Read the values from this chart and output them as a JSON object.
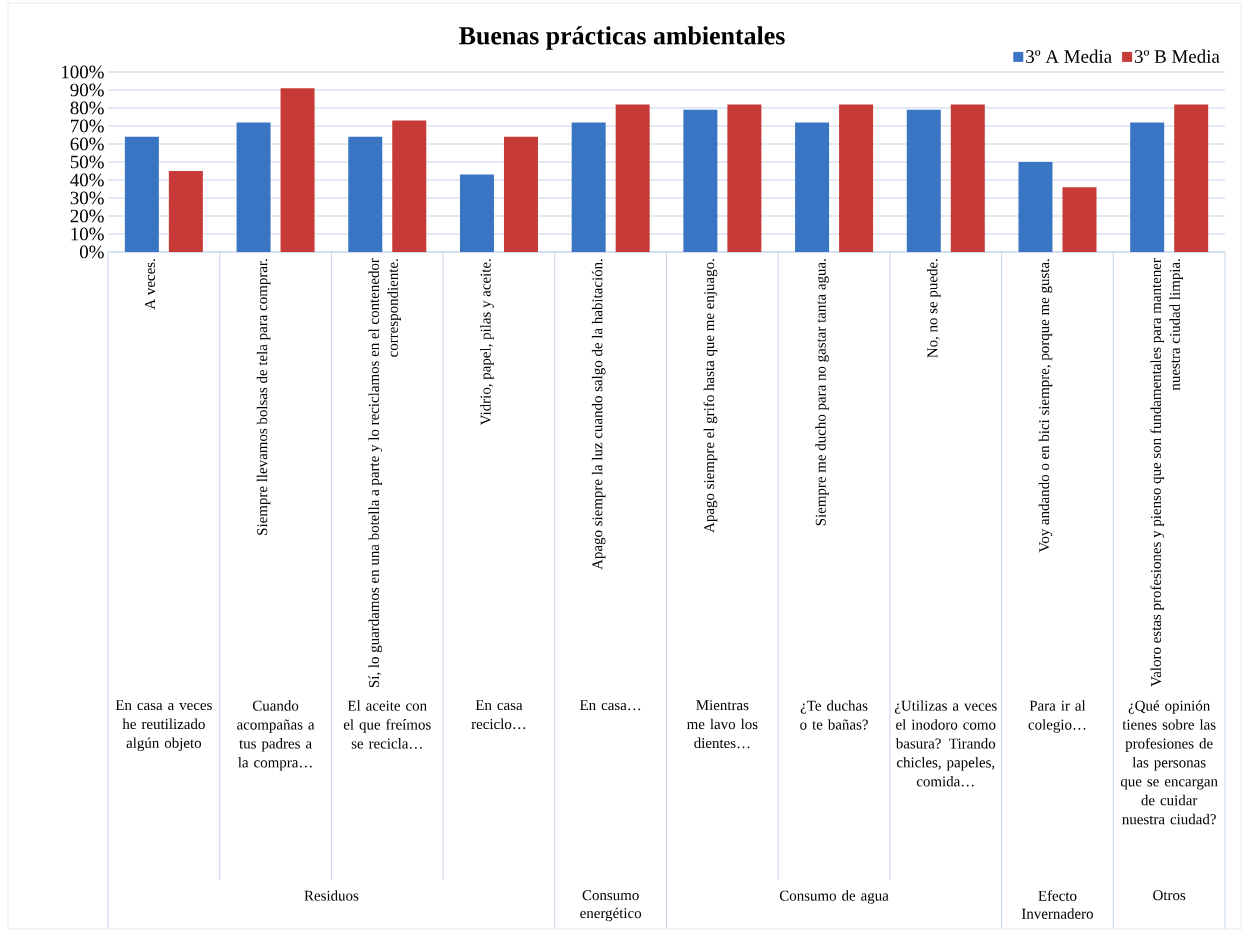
{
  "chart_data": {
    "type": "bar",
    "title": "Buenas prácticas ambientales",
    "categories": [
      "A veces.",
      "Siempre llevamos bolsas de tela para comprar.",
      "Sí, lo guardamos en una botella a parte y lo reciclamos en el contenedor correspondiente.",
      "Vidrio, papel, pilas y aceite.",
      "Apago siempre la luz cuando salgo de la habitación.",
      "Apago siempre el grifo hasta que me enjuago.",
      "Siempre me ducho para no gastar tanta agua.",
      "No, no se puede.",
      "Voy andando o en bici siempre, porque me gusta.",
      "Valoro estas profesiones y pienso que son fundamentales para mantener nuestra ciudad limpia."
    ],
    "series": [
      {
        "name": "3º A Media",
        "color": "#3a75c4",
        "values": [
          64,
          72,
          64,
          43,
          72,
          79,
          72,
          79,
          50,
          72
        ]
      },
      {
        "name": "3º B Media",
        "color": "#c63a38",
        "values": [
          45,
          91,
          73,
          64,
          82,
          82,
          82,
          82,
          36,
          82
        ]
      }
    ],
    "ylim": [
      0,
      100
    ],
    "yticks": [
      {
        "value": 0,
        "label": "0%"
      },
      {
        "value": 10,
        "label": "10%"
      },
      {
        "value": 20,
        "label": "20%"
      },
      {
        "value": 30,
        "label": "30%"
      },
      {
        "value": 40,
        "label": "40%"
      },
      {
        "value": 50,
        "label": "50%"
      },
      {
        "value": 60,
        "label": "60%"
      },
      {
        "value": 70,
        "label": "70%"
      },
      {
        "value": 80,
        "label": "80%"
      },
      {
        "value": 90,
        "label": "90%"
      },
      {
        "value": 100,
        "label": "100%"
      }
    ],
    "grid": "y",
    "legend": "top right",
    "annotations": [
      "En casa a veces he reutilizado algún objeto",
      "Cuando acompañas a tus padres a la compra…",
      "El aceite con el que freímos se recicla…",
      "En casa reciclo…",
      "En casa…",
      "Mientras me lavo los dientes…",
      "¿Te duchas o te bañas?",
      "¿Utilizas a veces el inodoro como basura? Tirando chicles, papeles, comida…",
      "Para ir al colegio…",
      "¿Qué opinión tienes sobre las profesiones de las personas que se encargan de cuidar nuestra ciudad?",
      "Residuos",
      "Consumo energético",
      "Consumo de agua",
      "Efecto Invernadero",
      "Otros"
    ]
  }
}
